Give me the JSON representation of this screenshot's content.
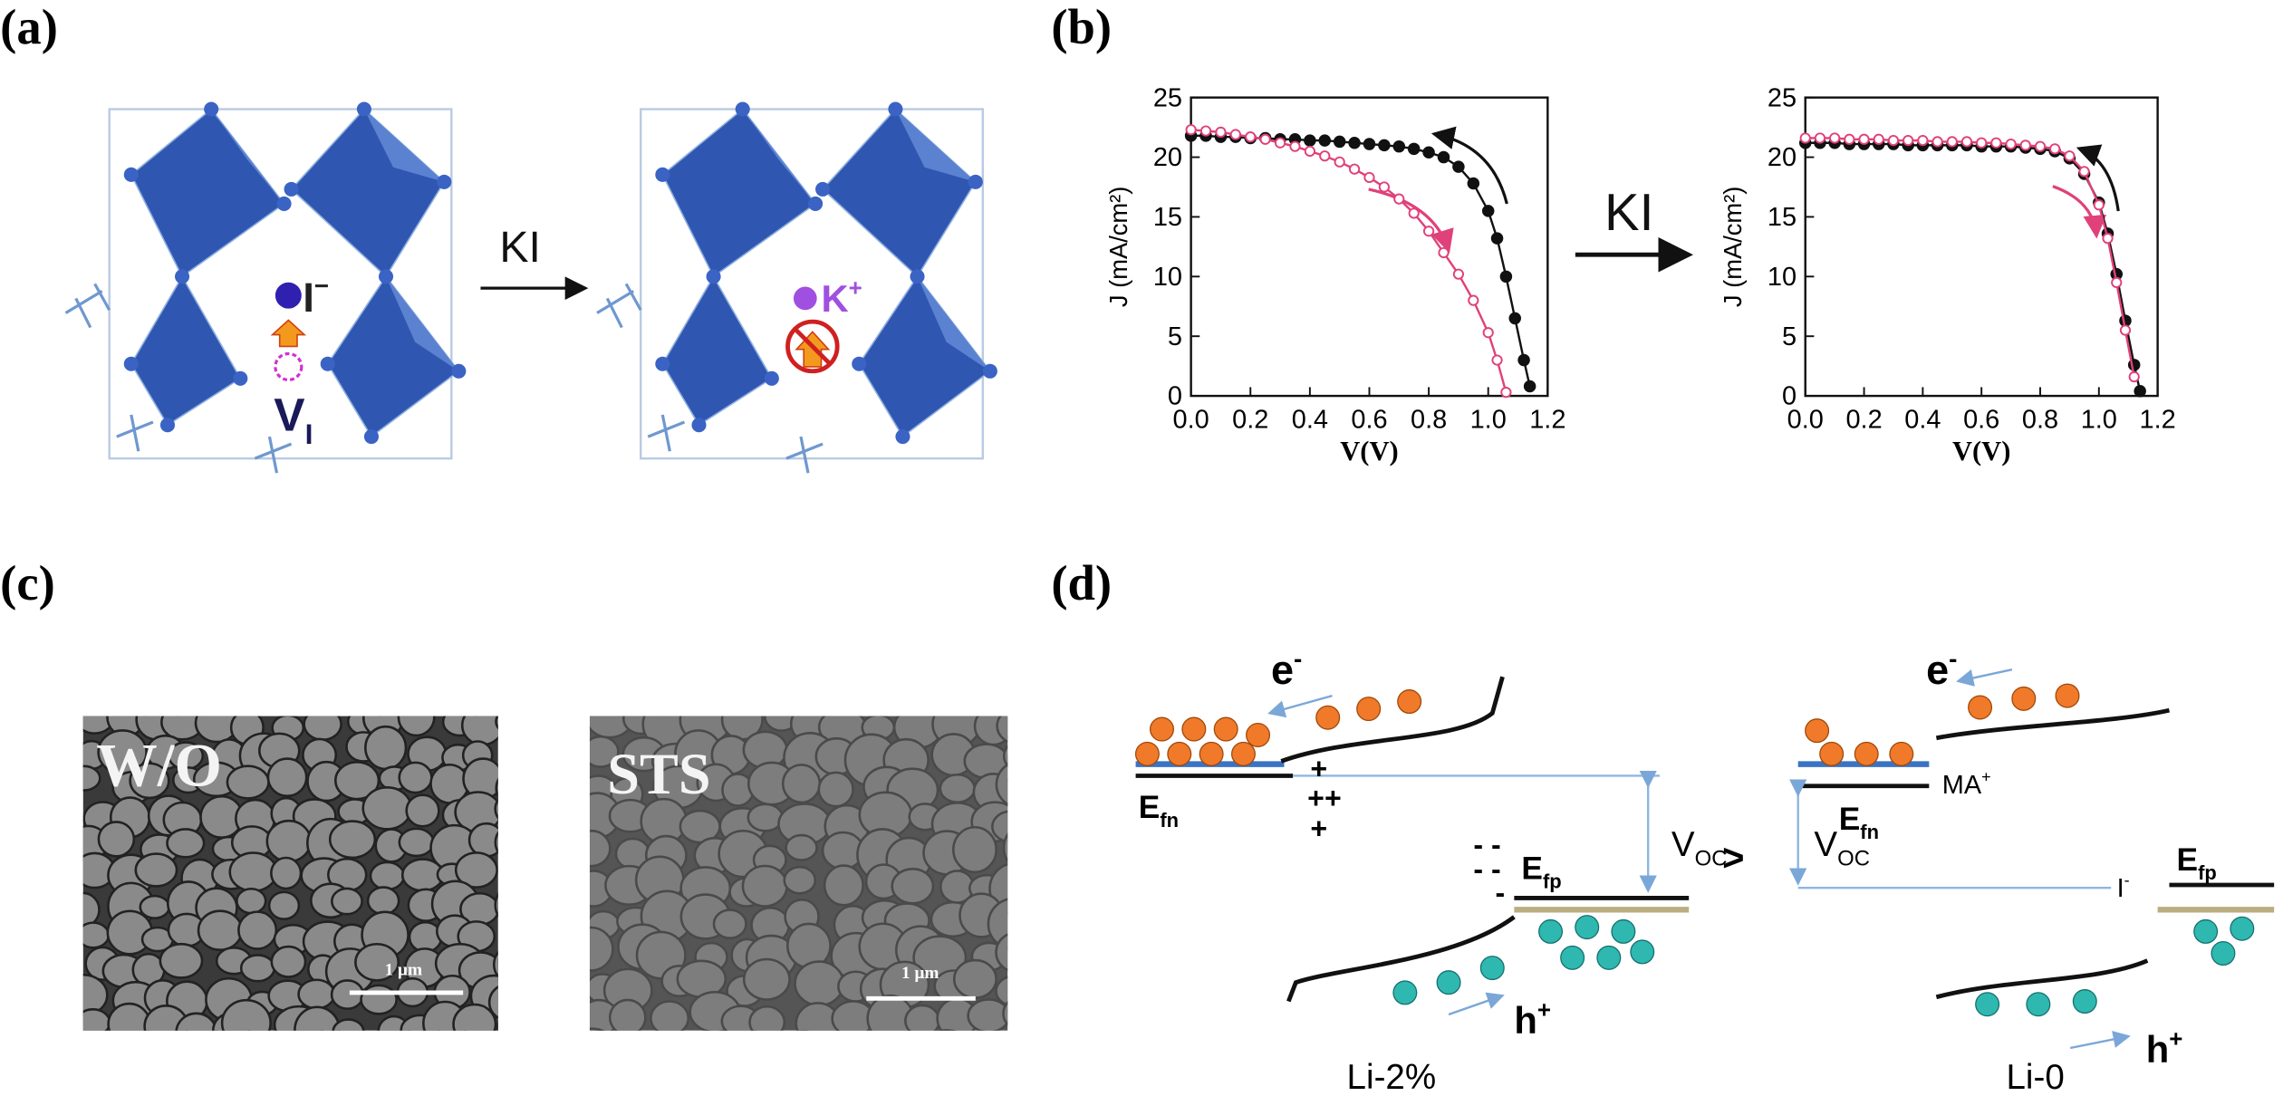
{
  "figure": {
    "panel_labels": [
      "(a)",
      "(b)",
      "(c)",
      "(d)"
    ],
    "a": {
      "ion_before": {
        "text": "I",
        "sup": "−"
      },
      "vacancy": {
        "text": "V",
        "sub": "I"
      },
      "arrow": "KI",
      "ion_after": {
        "text": "K",
        "sup": "+"
      }
    },
    "b": {
      "arrow": "KI"
    },
    "c": {
      "images": [
        {
          "label": "W/O",
          "scale": "1 μm"
        },
        {
          "label": "STS",
          "scale": "1 μm"
        }
      ]
    },
    "d": {
      "left": {
        "electron": {
          "text": "e",
          "sup": "-"
        },
        "efn": {
          "text": "E",
          "sub": "fn"
        },
        "charges_plus": [
          "+",
          "++",
          "+"
        ],
        "charges_minus": [
          "- -",
          "- -",
          "-"
        ],
        "efp": {
          "text": "E",
          "sub": "fp"
        },
        "voc": {
          "text": "V",
          "sub": "OC"
        },
        "hole": {
          "text": "h",
          "sup": "+"
        },
        "caption": "Li-2%"
      },
      "compare": ">",
      "right": {
        "electron": {
          "text": "e",
          "sup": "-"
        },
        "efn": {
          "text": "E",
          "sub": "fn"
        },
        "cation": {
          "text": "MA",
          "sup": "+"
        },
        "voc": {
          "text": "V",
          "sub": "OC"
        },
        "anion": {
          "text": "I",
          "sup": "-"
        },
        "efp": {
          "text": "E",
          "sub": "fp"
        },
        "hole": {
          "text": "h",
          "sup": "+"
        },
        "caption": "Li-0"
      }
    }
  },
  "chart_data": [
    {
      "type": "line",
      "x_label": "V(V)",
      "y_label": "J (mA/cm²)",
      "xlim": [
        0,
        1.2
      ],
      "ylim": [
        0,
        25
      ],
      "xticks": [
        {
          "value": 0,
          "label": "0.0"
        },
        0.2,
        0.4,
        0.6,
        0.8,
        {
          "value": 1,
          "label": "1.0"
        },
        1.2
      ],
      "yticks": [
        0,
        5,
        10,
        15,
        20,
        25
      ],
      "series": [
        {
          "color": "#111111",
          "marker": "filled",
          "x": [
            0,
            0.05,
            0.1,
            0.15,
            0.2,
            0.25,
            0.3,
            0.35,
            0.4,
            0.45,
            0.5,
            0.55,
            0.6,
            0.65,
            0.7,
            0.75,
            0.8,
            0.85,
            0.9,
            0.95,
            1.0,
            1.03,
            1.06,
            1.09,
            1.12,
            1.14
          ],
          "values": [
            21.8,
            21.8,
            21.7,
            21.7,
            21.6,
            21.6,
            21.5,
            21.5,
            21.4,
            21.4,
            21.3,
            21.2,
            21.1,
            21.0,
            20.9,
            20.7,
            20.4,
            20.0,
            19.2,
            17.8,
            15.5,
            13.2,
            10.0,
            6.5,
            3.0,
            0.8
          ]
        },
        {
          "color": "#e0417a",
          "marker": "open",
          "x": [
            0,
            0.05,
            0.1,
            0.15,
            0.2,
            0.25,
            0.3,
            0.35,
            0.4,
            0.45,
            0.5,
            0.55,
            0.6,
            0.65,
            0.7,
            0.75,
            0.8,
            0.85,
            0.9,
            0.95,
            1.0,
            1.03,
            1.06
          ],
          "values": [
            22.3,
            22.2,
            22.1,
            21.9,
            21.7,
            21.5,
            21.2,
            20.9,
            20.5,
            20.1,
            19.6,
            19.0,
            18.3,
            17.5,
            16.5,
            15.3,
            13.8,
            12.0,
            10.2,
            8.0,
            5.3,
            3.0,
            0.3
          ]
        }
      ]
    },
    {
      "type": "line",
      "x_label": "V(V)",
      "y_label": "J (mA/cm²)",
      "xlim": [
        0,
        1.2
      ],
      "ylim": [
        0,
        25
      ],
      "xticks": [
        {
          "value": 0,
          "label": "0.0"
        },
        0.2,
        0.4,
        0.6,
        0.8,
        {
          "value": 1,
          "label": "1.0"
        },
        1.2
      ],
      "yticks": [
        0,
        5,
        10,
        15,
        20,
        25
      ],
      "series": [
        {
          "color": "#111111",
          "marker": "filled",
          "x": [
            0,
            0.05,
            0.1,
            0.15,
            0.2,
            0.25,
            0.3,
            0.35,
            0.4,
            0.45,
            0.5,
            0.55,
            0.6,
            0.65,
            0.7,
            0.75,
            0.8,
            0.85,
            0.9,
            0.95,
            1.0,
            1.03,
            1.06,
            1.09,
            1.12,
            1.14
          ],
          "values": [
            21.2,
            21.2,
            21.2,
            21.1,
            21.1,
            21.1,
            21.1,
            21.0,
            21.0,
            21.0,
            21.0,
            21.0,
            20.9,
            20.9,
            20.9,
            20.8,
            20.7,
            20.5,
            19.9,
            18.6,
            16.2,
            13.6,
            10.2,
            6.3,
            2.6,
            0.4
          ]
        },
        {
          "color": "#e0417a",
          "marker": "open",
          "x": [
            0,
            0.05,
            0.1,
            0.15,
            0.2,
            0.25,
            0.3,
            0.35,
            0.4,
            0.45,
            0.5,
            0.55,
            0.6,
            0.65,
            0.7,
            0.75,
            0.8,
            0.85,
            0.9,
            0.95,
            1.0,
            1.03,
            1.06,
            1.09,
            1.12
          ],
          "values": [
            21.6,
            21.6,
            21.6,
            21.5,
            21.5,
            21.5,
            21.4,
            21.4,
            21.4,
            21.3,
            21.3,
            21.3,
            21.2,
            21.2,
            21.1,
            21.0,
            20.9,
            20.7,
            20.1,
            18.8,
            16.0,
            13.2,
            9.5,
            5.5,
            1.6
          ]
        }
      ]
    }
  ]
}
